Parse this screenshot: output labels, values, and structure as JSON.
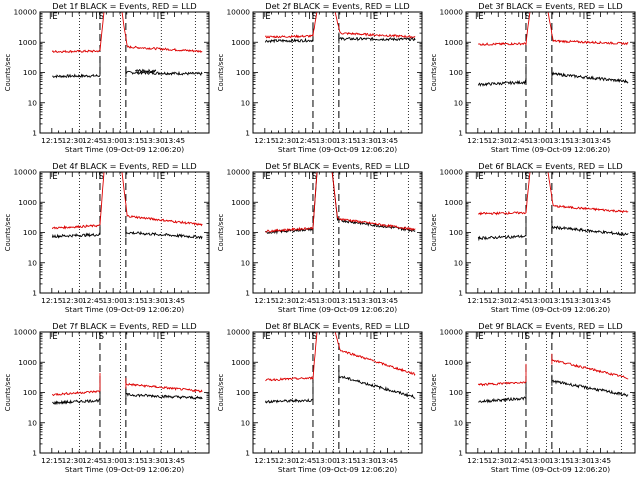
{
  "chart_data": [
    {
      "type": "line",
      "title": "Det 1f BLACK = Events, RED = LLD",
      "ylabel": "Counts/sec",
      "xlabel": "Start Time (09-Oct-09 12:06:20)",
      "x_ticks": [
        "12:15",
        "12:30",
        "12:45",
        "13:00",
        "13:15",
        "13:30",
        "13:45"
      ],
      "y_ticks": [
        "1",
        "10",
        "100",
        "1000",
        "10000"
      ],
      "yscale": "log",
      "ylim": [
        1,
        10000
      ],
      "markers": [
        "E",
        "S",
        "E"
      ],
      "marker_times": [
        9,
        43,
        88
      ],
      "dotted_times": [
        29,
        59,
        89,
        114
      ],
      "dashed_times": [
        44,
        63
      ],
      "series": [
        {
          "color": "#000000",
          "gap": [
            44,
            63
          ],
          "pre": {
            "x": [
              9,
              44
            ],
            "y": [
              75,
              78
            ]
          },
          "post": {
            "x": [
              63,
              119
            ],
            "y": [
              100,
              90
            ]
          },
          "bump": {
            "x": [
              70,
              85
            ],
            "y": [
              115,
              110
            ]
          }
        },
        {
          "color": "#dd0000",
          "x": [
            9,
            44,
            47,
            60,
            64,
            119
          ],
          "y": [
            490,
            510,
            11000,
            11000,
            700,
            500
          ]
        }
      ]
    },
    {
      "type": "line",
      "title": "Det 2f BLACK = Events, RED = LLD",
      "ylabel": "Counts/sec",
      "xlabel": "Start Time (09-Oct-09 12:06:20)",
      "x_ticks": [
        "12:15",
        "12:30",
        "12:45",
        "13:00",
        "13:15",
        "13:30",
        "13:45"
      ],
      "y_ticks": [
        "1",
        "10",
        "100",
        "1000",
        "10000"
      ],
      "yscale": "log",
      "ylim": [
        1,
        10000
      ],
      "markers": [
        "E",
        "S",
        "E"
      ],
      "marker_times": [
        9,
        43,
        88
      ],
      "dotted_times": [
        29,
        59,
        89,
        114
      ],
      "dashed_times": [
        44,
        63
      ],
      "series": [
        {
          "color": "#000000",
          "gap": [
            44,
            63
          ],
          "pre": {
            "x": [
              9,
              44
            ],
            "y": [
              1100,
              1150
            ]
          },
          "post": {
            "x": [
              63,
              119
            ],
            "y": [
              1300,
              1250
            ]
          }
        },
        {
          "color": "#dd0000",
          "x": [
            9,
            44,
            47,
            60,
            64,
            119
          ],
          "y": [
            1500,
            1600,
            11000,
            11000,
            2000,
            1500
          ]
        }
      ]
    },
    {
      "type": "line",
      "title": "Det 3f BLACK = Events, RED = LLD",
      "ylabel": "Counts/sec",
      "xlabel": "Start Time (09-Oct-09 12:06:20)",
      "x_ticks": [
        "12:15",
        "12:30",
        "12:45",
        "13:00",
        "13:15",
        "13:30",
        "13:45"
      ],
      "y_ticks": [
        "1",
        "10",
        "100",
        "1000",
        "10000"
      ],
      "yscale": "log",
      "ylim": [
        1,
        10000
      ],
      "markers": [
        "E",
        "S",
        "E"
      ],
      "marker_times": [
        9,
        43,
        88
      ],
      "dotted_times": [
        29,
        59,
        89,
        114
      ],
      "dashed_times": [
        44,
        63
      ],
      "series": [
        {
          "color": "#000000",
          "gap": [
            44,
            63
          ],
          "pre": {
            "x": [
              9,
              44
            ],
            "y": [
              40,
              48
            ]
          },
          "post": {
            "x": [
              63,
              119
            ],
            "y": [
              90,
              50
            ]
          }
        },
        {
          "color": "#dd0000",
          "x": [
            9,
            44,
            47,
            60,
            64,
            119
          ],
          "y": [
            850,
            900,
            11000,
            11000,
            1100,
            900
          ]
        }
      ]
    },
    {
      "type": "line",
      "title": "Det 4f BLACK = Events, RED = LLD",
      "ylabel": "Counts/sec",
      "xlabel": "Start Time (09-Oct-09 12:06:20)",
      "x_ticks": [
        "12:15",
        "12:30",
        "12:45",
        "13:00",
        "13:15",
        "13:30",
        "13:45"
      ],
      "y_ticks": [
        "1",
        "10",
        "100",
        "1000",
        "10000"
      ],
      "yscale": "log",
      "ylim": [
        1,
        10000
      ],
      "markers": [
        "E",
        "S",
        "E"
      ],
      "marker_times": [
        9,
        43,
        88
      ],
      "dotted_times": [
        29,
        59,
        89,
        114
      ],
      "dashed_times": [
        44,
        63
      ],
      "series": [
        {
          "color": "#000000",
          "gap": [
            44,
            63
          ],
          "pre": {
            "x": [
              9,
              44
            ],
            "y": [
              75,
              85
            ]
          },
          "post": {
            "x": [
              63,
              119
            ],
            "y": [
              100,
              70
            ]
          }
        },
        {
          "color": "#dd0000",
          "x": [
            9,
            44,
            47,
            60,
            64,
            119
          ],
          "y": [
            140,
            170,
            11000,
            11000,
            350,
            180
          ]
        }
      ]
    },
    {
      "type": "line",
      "title": "Det 5f BLACK = Events, RED = LLD",
      "ylabel": "Counts/sec",
      "xlabel": "Start Time (09-Oct-09 12:06:20)",
      "x_ticks": [
        "12:15",
        "12:30",
        "12:45",
        "13:00",
        "13:15",
        "13:30",
        "13:45"
      ],
      "y_ticks": [
        "1",
        "10",
        "100",
        "1000",
        "10000"
      ],
      "yscale": "log",
      "ylim": [
        1,
        10000
      ],
      "markers": [
        "E",
        "S",
        "E"
      ],
      "marker_times": [
        9,
        43,
        88
      ],
      "dotted_times": [
        29,
        59,
        89,
        114
      ],
      "dashed_times": [
        44,
        63
      ],
      "series": [
        {
          "color": "#000000",
          "x": [
            9,
            44,
            47,
            58,
            62,
            119
          ],
          "y": [
            100,
            130,
            11000,
            11000,
            260,
            115
          ]
        },
        {
          "color": "#dd0000",
          "x": [
            9,
            44,
            47,
            58,
            62,
            119
          ],
          "y": [
            110,
            140,
            11000,
            11000,
            290,
            125
          ]
        }
      ]
    },
    {
      "type": "line",
      "title": "Det 6f BLACK = Events, RED = LLD",
      "ylabel": "Counts/sec",
      "xlabel": "Start Time (09-Oct-09 12:06:20)",
      "x_ticks": [
        "12:15",
        "12:30",
        "12:45",
        "13:00",
        "13:15",
        "13:30",
        "13:45"
      ],
      "y_ticks": [
        "1",
        "10",
        "100",
        "1000",
        "10000"
      ],
      "yscale": "log",
      "ylim": [
        1,
        10000
      ],
      "markers": [
        "E",
        "S",
        "E"
      ],
      "marker_times": [
        9,
        43,
        88
      ],
      "dotted_times": [
        29,
        59,
        89,
        114
      ],
      "dashed_times": [
        44,
        63
      ],
      "series": [
        {
          "color": "#000000",
          "gap": [
            44,
            63
          ],
          "pre": {
            "x": [
              9,
              44
            ],
            "y": [
              65,
              75
            ]
          },
          "post": {
            "x": [
              63,
              119
            ],
            "y": [
              150,
              85
            ]
          }
        },
        {
          "color": "#dd0000",
          "x": [
            9,
            44,
            47,
            60,
            64,
            119
          ],
          "y": [
            420,
            450,
            11000,
            11000,
            750,
            480
          ]
        }
      ]
    },
    {
      "type": "line",
      "title": "Det 7f BLACK = Events, RED = LLD",
      "ylabel": "Counts/sec",
      "xlabel": "Start Time (09-Oct-09 12:06:20)",
      "x_ticks": [
        "12:15",
        "12:30",
        "12:45",
        "13:00",
        "13:15",
        "13:30",
        "13:45"
      ],
      "y_ticks": [
        "1",
        "10",
        "100",
        "1000",
        "10000"
      ],
      "yscale": "log",
      "ylim": [
        1,
        10000
      ],
      "markers": [
        "E",
        "S",
        "E"
      ],
      "marker_times": [
        9,
        43,
        88
      ],
      "dotted_times": [
        29,
        59,
        89,
        114
      ],
      "dashed_times": [
        44,
        63
      ],
      "series": [
        {
          "color": "#000000",
          "gap": [
            44,
            63
          ],
          "pre": {
            "x": [
              9,
              44
            ],
            "y": [
              45,
              55
            ]
          },
          "post": {
            "x": [
              63,
              119
            ],
            "y": [
              85,
              65
            ]
          }
        },
        {
          "color": "#dd0000",
          "gap": [
            44,
            63
          ],
          "pre": {
            "x": [
              9,
              44
            ],
            "y": [
              85,
              110
            ]
          },
          "post": {
            "x": [
              63,
              119
            ],
            "y": [
              190,
              110
            ]
          }
        }
      ]
    },
    {
      "type": "line",
      "title": "Det 8f BLACK = Events, RED = LLD",
      "ylabel": "Counts/sec",
      "xlabel": "Start Time (09-Oct-09 12:06:20)",
      "x_ticks": [
        "12:15",
        "12:30",
        "12:45",
        "13:00",
        "13:15",
        "13:30",
        "13:45"
      ],
      "y_ticks": [
        "1",
        "10",
        "100",
        "1000",
        "10000"
      ],
      "yscale": "log",
      "ylim": [
        1,
        10000
      ],
      "markers": [
        "E",
        "S",
        "E"
      ],
      "marker_times": [
        9,
        43,
        88
      ],
      "dotted_times": [
        29,
        59,
        89,
        114
      ],
      "dashed_times": [
        44,
        63
      ],
      "series": [
        {
          "color": "#000000",
          "gap": [
            44,
            63
          ],
          "pre": {
            "x": [
              9,
              44
            ],
            "y": [
              50,
              55
            ]
          },
          "post": {
            "x": [
              63,
              119
            ],
            "y": [
              350,
              70
            ]
          }
        },
        {
          "color": "#dd0000",
          "x": [
            9,
            44,
            47,
            60,
            64,
            119
          ],
          "y": [
            260,
            300,
            11000,
            11000,
            2500,
            400
          ]
        }
      ]
    },
    {
      "type": "line",
      "title": "Det 9f BLACK = Events, RED = LLD",
      "ylabel": "Counts/sec",
      "xlabel": "Start Time (09-Oct-09 12:06:20)",
      "x_ticks": [
        "12:15",
        "12:30",
        "12:45",
        "13:00",
        "13:15",
        "13:30",
        "13:45"
      ],
      "y_ticks": [
        "1",
        "10",
        "100",
        "1000",
        "10000"
      ],
      "yscale": "log",
      "ylim": [
        1,
        10000
      ],
      "markers": [
        "E",
        "S",
        "E"
      ],
      "marker_times": [
        9,
        43,
        88
      ],
      "dotted_times": [
        29,
        59,
        89,
        114
      ],
      "dashed_times": [
        44,
        63
      ],
      "series": [
        {
          "color": "#000000",
          "gap": [
            44,
            63
          ],
          "pre": {
            "x": [
              9,
              44
            ],
            "y": [
              50,
              65
            ]
          },
          "post": {
            "x": [
              63,
              119
            ],
            "y": [
              240,
              80
            ]
          }
        },
        {
          "color": "#dd0000",
          "gap": [
            44,
            63
          ],
          "pre": {
            "x": [
              9,
              44
            ],
            "y": [
              180,
              220
            ]
          },
          "post": {
            "x": [
              63,
              119
            ],
            "y": [
              1200,
              300
            ]
          }
        }
      ]
    }
  ]
}
